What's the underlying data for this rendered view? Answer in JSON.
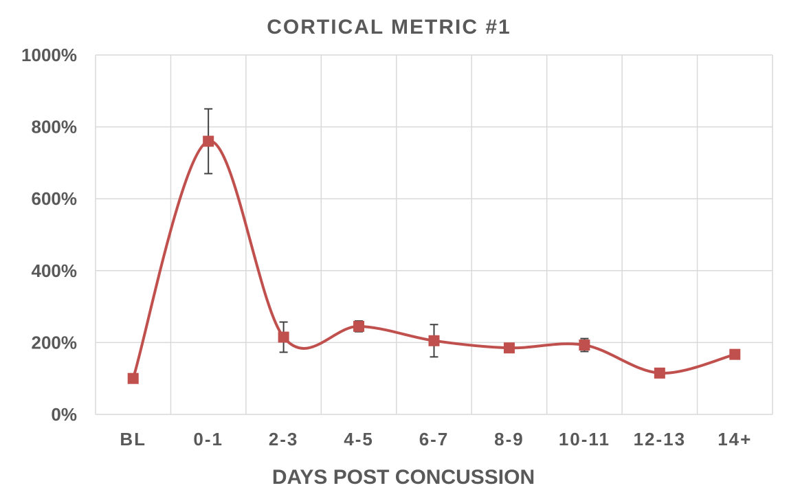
{
  "chart_data": {
    "type": "line",
    "title": "CORTICAL METRIC #1",
    "xlabel": "DAYS POST CONCUSSION",
    "ylabel": "",
    "categories": [
      "BL",
      "0-1",
      "2-3",
      "4-5",
      "6-7",
      "8-9",
      "10-11",
      "12-13",
      "14+"
    ],
    "series": [
      {
        "color": "#c0504d",
        "values": [
          100,
          760,
          215,
          245,
          205,
          185,
          193,
          115,
          167
        ],
        "error": [
          0,
          90,
          42,
          15,
          45,
          0,
          18,
          0,
          0
        ]
      }
    ],
    "ylim": [
      0,
      1000
    ],
    "yticks": [
      0,
      200,
      400,
      600,
      800,
      1000
    ],
    "ytick_labels": [
      "0%",
      "200%",
      "400%",
      "600%",
      "800%",
      "1000%"
    ],
    "grid": true,
    "smooth": true,
    "marker": "square",
    "legend": "none"
  }
}
